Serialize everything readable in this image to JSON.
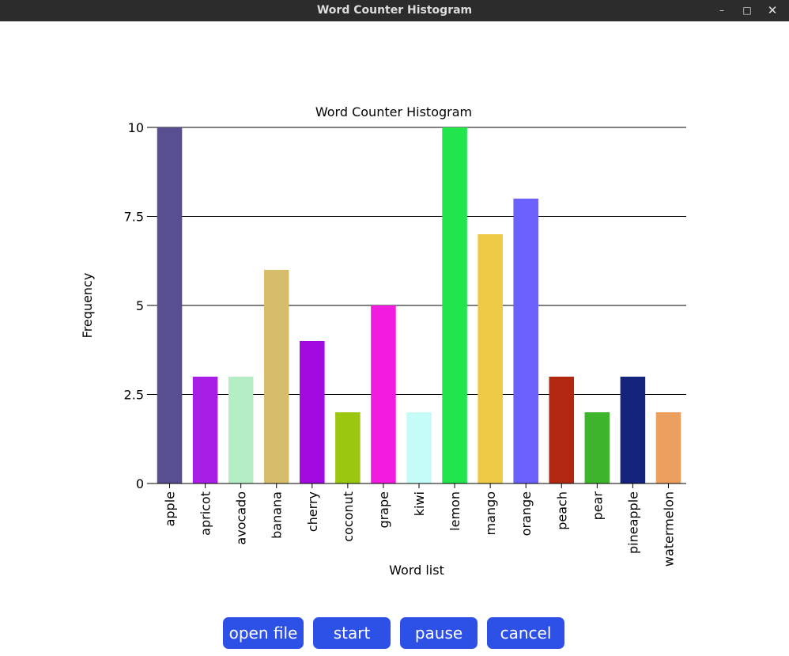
{
  "window": {
    "title": "Word Counter Histogram",
    "controls": {
      "minimize": "–",
      "maximize": "□",
      "close": "✕"
    }
  },
  "chart_data": {
    "type": "bar",
    "title": "Word Counter Histogram",
    "xlabel": "Word list",
    "ylabel": "Frequency",
    "ylim": [
      0,
      10
    ],
    "yticks": [
      0,
      2.5,
      5,
      7.5,
      10
    ],
    "ytick_labels": [
      "0",
      "2.5",
      "5",
      "7.5",
      "10"
    ],
    "grid": true,
    "categories": [
      "apple",
      "apricot",
      "avocado",
      "banana",
      "cherry",
      "coconut",
      "grape",
      "kiwi",
      "lemon",
      "mango",
      "orange",
      "peach",
      "pear",
      "pineapple",
      "watermelon"
    ],
    "values": [
      10,
      3,
      3,
      6,
      4,
      2,
      5,
      2,
      10,
      7,
      8,
      3,
      2,
      3,
      2
    ],
    "colors": [
      "#584f91",
      "#a91ee6",
      "#b5edc4",
      "#d5bd6b",
      "#a10be0",
      "#9bc711",
      "#f21ce0",
      "#c6fcf7",
      "#22e54e",
      "#edcb47",
      "#6c61fc",
      "#b2270f",
      "#3fb42d",
      "#14247c",
      "#eca05f"
    ]
  },
  "controls": {
    "accent": "#2d50e6",
    "open_file": "open file",
    "start": "start",
    "pause": "pause",
    "cancel": "cancel"
  }
}
